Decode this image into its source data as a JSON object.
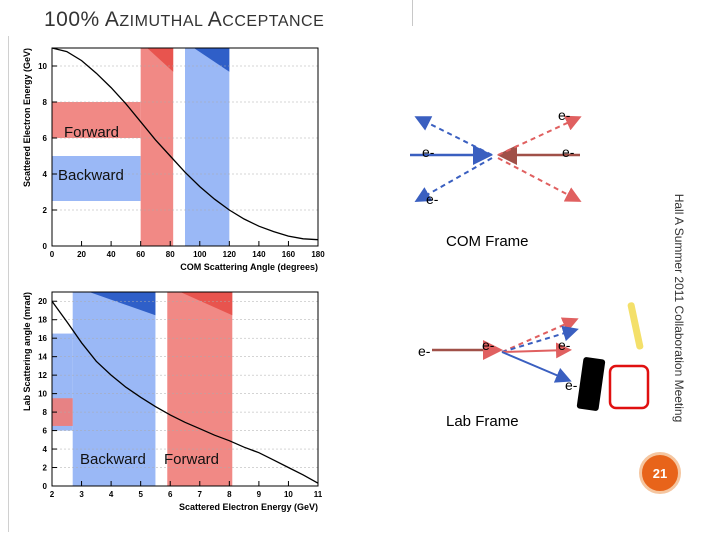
{
  "slide": {
    "title_first": "100% A",
    "title_rest": "ZIMUTHAL ",
    "title_first2": "A",
    "title_rest2": "CCEPTANCE",
    "footer_text": "Hall A Summer 2011 Collaboration Meeting",
    "page_number": "21"
  },
  "colors": {
    "red": "#f07c78",
    "red_dark": "#e8544e",
    "blue": "#8fb0f5",
    "blue_dark": "#2f5fc8",
    "orange": "#e8641a"
  },
  "chart_data": [
    {
      "type": "line",
      "title": "",
      "xlabel": "COM Scattering Angle (degrees)",
      "ylabel": "Scattered Electron Energy (GeV)",
      "xlim": [
        0,
        180
      ],
      "ylim": [
        0,
        11
      ],
      "xticks": [
        "0",
        "20",
        "40",
        "60",
        "80",
        "100",
        "120",
        "140",
        "160",
        "180"
      ],
      "yticks": [
        "0",
        "2",
        "4",
        "6",
        "8",
        "10"
      ],
      "x": [
        0,
        10,
        20,
        30,
        40,
        50,
        60,
        70,
        80,
        90,
        100,
        110,
        120,
        130,
        140,
        150,
        160,
        170,
        180
      ],
      "y": [
        11,
        10.8,
        10.3,
        9.6,
        8.8,
        7.9,
        6.9,
        5.9,
        5.0,
        4.1,
        3.3,
        2.6,
        2.0,
        1.5,
        1.1,
        0.8,
        0.55,
        0.4,
        0.35
      ],
      "regions": [
        {
          "label": "Forward",
          "type": "hband",
          "y0": 6,
          "y1": 8,
          "x0": 0,
          "x1": 60,
          "color": "red"
        },
        {
          "label": "Backward",
          "type": "hband",
          "y0": 2.5,
          "y1": 5,
          "x0": 0,
          "x1": 60,
          "color": "blue"
        },
        {
          "label": "",
          "type": "vband",
          "x0": 60,
          "x1": 82,
          "y0": 0,
          "y1": 11,
          "color": "red"
        },
        {
          "label": "",
          "type": "vband",
          "x0": 90,
          "x1": 120,
          "y0": 0,
          "y1": 11,
          "color": "blue"
        }
      ]
    },
    {
      "type": "line",
      "title": "",
      "xlabel": "Scattered Electron Energy (GeV)",
      "ylabel": "Lab Scattering angle (mrad)",
      "xlim": [
        2,
        11
      ],
      "ylim": [
        0,
        21
      ],
      "xticks": [
        "2",
        "3",
        "4",
        "5",
        "6",
        "7",
        "8",
        "9",
        "10",
        "11"
      ],
      "yticks": [
        "0",
        "2",
        "4",
        "6",
        "8",
        "10",
        "12",
        "14",
        "16",
        "18",
        "20"
      ],
      "x": [
        2,
        2.5,
        3,
        3.5,
        4,
        4.5,
        5,
        5.5,
        6,
        6.5,
        7,
        7.5,
        8,
        8.5,
        9,
        9.5,
        10,
        10.5,
        11
      ],
      "y": [
        20,
        17.8,
        15.5,
        13.5,
        12,
        10.7,
        9.6,
        8.6,
        7.7,
        6.9,
        6.2,
        5.5,
        4.9,
        4.2,
        3.6,
        2.8,
        2.0,
        1.2,
        0.3
      ],
      "regions": [
        {
          "label": "Backward",
          "type": "vband",
          "x0": 2.7,
          "x1": 5.5,
          "y0": 0,
          "y1": 21,
          "color": "blue"
        },
        {
          "label": "Forward",
          "type": "vband",
          "x0": 5.9,
          "x1": 8.1,
          "y0": 0,
          "y1": 21,
          "color": "red"
        },
        {
          "label": "",
          "type": "hband",
          "y0": 6,
          "y1": 16.5,
          "x0": 2,
          "x1": 2.7,
          "color": "blue"
        },
        {
          "label": "",
          "type": "hband",
          "y0": 6.5,
          "y1": 9.5,
          "x0": 2,
          "x1": 2.7,
          "color": "red"
        }
      ]
    }
  ],
  "com_diagram": {
    "label": "COM Frame",
    "electrons": [
      "e-",
      "e-",
      "e-",
      "e-"
    ]
  },
  "lab_diagram": {
    "label": "Lab Frame",
    "electrons": [
      "e-",
      "e-",
      "e-",
      "e-"
    ]
  }
}
